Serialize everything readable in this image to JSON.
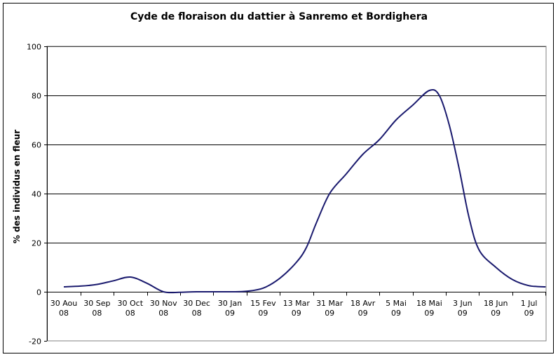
{
  "chart_data": {
    "type": "line",
    "title": "Cyde de floraison du dattier à Sanremo et Bordighera",
    "ylabel": "% des individus en fleur",
    "xlabel": "",
    "ylim": [
      -20,
      100
    ],
    "yticks": [
      "-20",
      "0",
      "20",
      "40",
      "60",
      "80",
      "100"
    ],
    "categories": [
      [
        "30 Aou",
        "08"
      ],
      [
        "30 Sep",
        "08"
      ],
      [
        "30 Oct",
        "08"
      ],
      [
        "30 Nov",
        "08"
      ],
      [
        "30 Dec",
        "08"
      ],
      [
        "30 Jan",
        "09"
      ],
      [
        "15 Fev",
        "09"
      ],
      [
        "13 Mar",
        "09"
      ],
      [
        "31 Mar",
        "09"
      ],
      [
        "18 Avr",
        "09"
      ],
      [
        "5 Mai",
        "09"
      ],
      [
        "18 Mai",
        "09"
      ],
      [
        "3 Jun",
        "09"
      ],
      [
        "18 Jun",
        "09"
      ],
      [
        "1 Jul",
        "09"
      ]
    ],
    "grid": true,
    "legend": "none",
    "series": [
      {
        "color": "#1a1a6e",
        "points": [
          [
            0,
            2
          ],
          [
            0.5,
            2.3
          ],
          [
            1,
            3
          ],
          [
            1.5,
            4.5
          ],
          [
            2,
            6
          ],
          [
            2.5,
            3.5
          ],
          [
            3,
            0
          ],
          [
            3.5,
            -0.2
          ],
          [
            4,
            0
          ],
          [
            5,
            0
          ],
          [
            5.5,
            0.2
          ],
          [
            6,
            1.5
          ],
          [
            6.5,
            5.5
          ],
          [
            7,
            12
          ],
          [
            7.3,
            18
          ],
          [
            7.6,
            28
          ],
          [
            8,
            40
          ],
          [
            8.5,
            48
          ],
          [
            9,
            56
          ],
          [
            9.5,
            62
          ],
          [
            10,
            70
          ],
          [
            10.5,
            76
          ],
          [
            11,
            82
          ],
          [
            11.3,
            80
          ],
          [
            11.6,
            68
          ],
          [
            11.9,
            50
          ],
          [
            12.2,
            30
          ],
          [
            12.5,
            17
          ],
          [
            13,
            10
          ],
          [
            13.5,
            5
          ],
          [
            14,
            2.5
          ],
          [
            14.5,
            2
          ]
        ]
      }
    ]
  }
}
